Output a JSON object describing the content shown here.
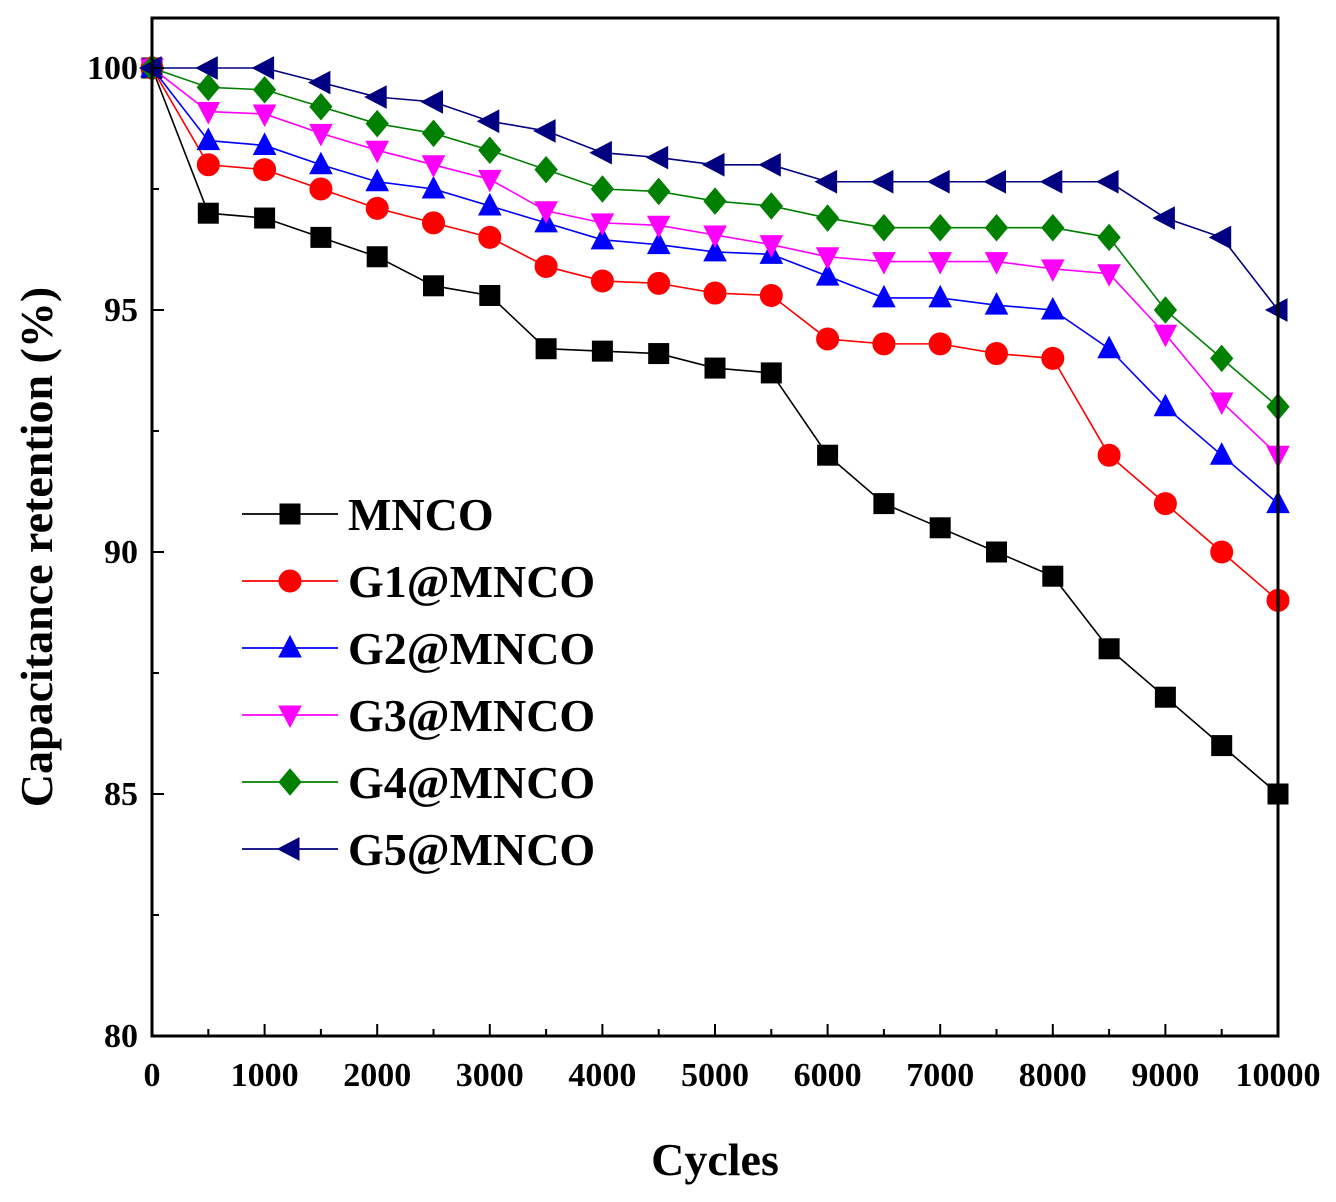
{
  "chart_data": {
    "type": "line",
    "title": "",
    "xlabel": "Cycles",
    "ylabel": "Capacitance retention (%)",
    "xlim": [
      0,
      10000
    ],
    "ylim": [
      80,
      101.2
    ],
    "xticks": [
      "0",
      "1000",
      "2000",
      "3000",
      "4000",
      "5000",
      "6000",
      "7000",
      "8000",
      "9000",
      "10000"
    ],
    "yticks": [
      "80",
      "85",
      "90",
      "95",
      "100"
    ],
    "grid": false,
    "legend_position": "center-left",
    "x": [
      0,
      500,
      1000,
      1500,
      2000,
      2500,
      3000,
      3500,
      4000,
      4500,
      5000,
      5500,
      6000,
      6500,
      7000,
      7500,
      8000,
      8500,
      9000,
      9500,
      10000
    ],
    "series": [
      {
        "name": "MNCO",
        "color": "#000000",
        "marker": "square",
        "values": [
          100,
          97.0,
          96.9,
          96.5,
          96.1,
          95.5,
          95.3,
          94.2,
          94.15,
          94.1,
          93.8,
          93.7,
          92.0,
          91.0,
          90.5,
          90.0,
          89.5,
          88.0,
          87.0,
          86.0,
          85.0
        ]
      },
      {
        "name": "G1@MNCO",
        "color": "#ff0000",
        "marker": "circle",
        "values": [
          100,
          98.0,
          97.9,
          97.5,
          97.1,
          96.8,
          96.5,
          95.9,
          95.6,
          95.55,
          95.35,
          95.3,
          94.4,
          94.3,
          94.3,
          94.1,
          94.0,
          92.0,
          91.0,
          90.0,
          89.0
        ]
      },
      {
        "name": "G2@MNCO",
        "color": "#0000ff",
        "marker": "triangle-up",
        "values": [
          100,
          98.5,
          98.4,
          98.0,
          97.65,
          97.5,
          97.15,
          96.8,
          96.45,
          96.35,
          96.2,
          96.15,
          95.7,
          95.25,
          95.25,
          95.1,
          95.0,
          94.2,
          93.0,
          92.0,
          91.0
        ]
      },
      {
        "name": "G3@MNCO",
        "color": "#ff00ff",
        "marker": "triangle-down",
        "values": [
          100,
          99.1,
          99.05,
          98.65,
          98.3,
          98.0,
          97.7,
          97.05,
          96.8,
          96.75,
          96.55,
          96.35,
          96.1,
          96.0,
          96.0,
          96.0,
          95.85,
          95.75,
          94.5,
          93.1,
          92.0
        ]
      },
      {
        "name": "G4@MNCO",
        "color": "#008000",
        "marker": "diamond",
        "values": [
          100,
          99.6,
          99.55,
          99.2,
          98.85,
          98.65,
          98.3,
          97.9,
          97.5,
          97.45,
          97.25,
          97.15,
          96.9,
          96.7,
          96.7,
          96.7,
          96.7,
          96.5,
          95.0,
          94.0,
          93.0
        ]
      },
      {
        "name": "G5@MNCO",
        "color": "#000080",
        "marker": "triangle-left",
        "values": [
          100,
          100.0,
          100.0,
          99.7,
          99.4,
          99.3,
          98.9,
          98.7,
          98.25,
          98.15,
          98.0,
          98.0,
          97.65,
          97.65,
          97.65,
          97.65,
          97.65,
          97.65,
          96.9,
          96.5,
          95.0
        ]
      }
    ]
  }
}
